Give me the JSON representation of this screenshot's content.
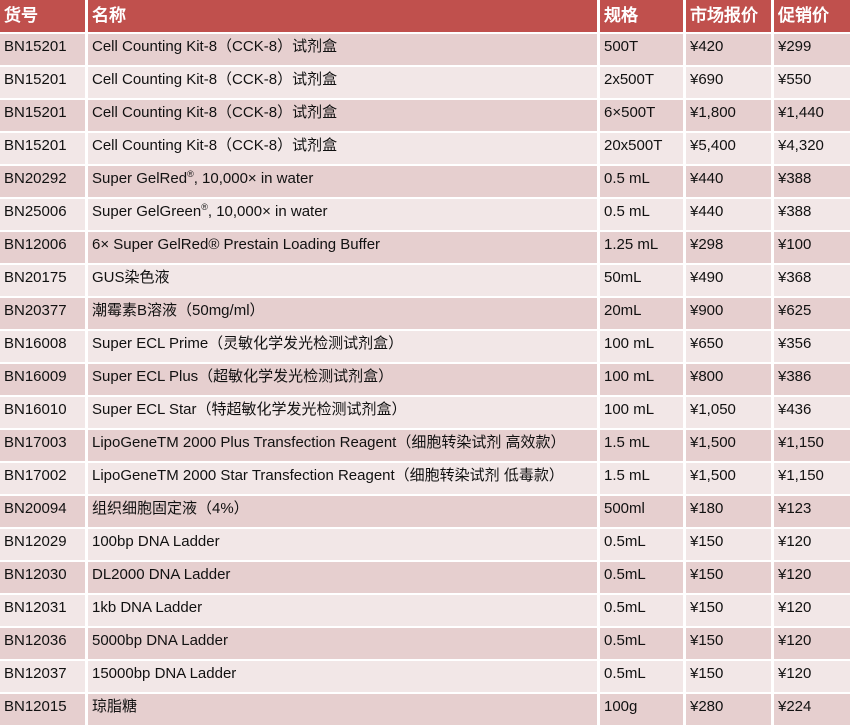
{
  "colors": {
    "header_bg": "#c0504d",
    "row_dark": "#e6cfcf",
    "row_light": "#f2e7e7"
  },
  "headers": [
    "货号",
    "名称",
    "规格",
    "市场报价",
    "促销价"
  ],
  "rows": [
    {
      "id": "BN15201",
      "name": "Cell Counting Kit-8（CCK-8）试剂盒",
      "spec": "500T",
      "market": "¥420",
      "promo": "¥299"
    },
    {
      "id": "BN15201",
      "name": "Cell Counting Kit-8（CCK-8）试剂盒",
      "spec": "2x500T",
      "market": "¥690",
      "promo": "¥550"
    },
    {
      "id": "BN15201",
      "name": "Cell Counting Kit-8（CCK-8）试剂盒",
      "spec": "6×500T",
      "market": "¥1,800",
      "promo": "¥1,440"
    },
    {
      "id": "BN15201",
      "name": "Cell Counting Kit-8（CCK-8）试剂盒",
      "spec": "20x500T",
      "market": "¥5,400",
      "promo": "¥4,320"
    },
    {
      "id": "BN20292",
      "name": "Super GelRed",
      "sup": "®",
      "name_rest": ", 10,000× in water",
      "spec": "0.5 mL",
      "market": "¥440",
      "promo": "¥388"
    },
    {
      "id": "BN25006",
      "name": "Super GelGreen",
      "sup": "®",
      "name_rest": ", 10,000× in water",
      "spec": "0.5 mL",
      "market": "¥440",
      "promo": "¥388"
    },
    {
      "id": "BN12006",
      "name": "6× Super GelRed® Prestain Loading Buffer",
      "spec": "1.25 mL",
      "market": "¥298",
      "promo": "¥100"
    },
    {
      "id": "BN20175",
      "name": "GUS染色液",
      "spec": "50mL",
      "market": "¥490",
      "promo": "¥368"
    },
    {
      "id": "BN20377",
      "name": "潮霉素B溶液（50mg/ml）",
      "spec": "20mL",
      "market": "¥900",
      "promo": "¥625"
    },
    {
      "id": "BN16008",
      "name": "Super ECL Prime（灵敏化学发光检测试剂盒）",
      "spec": "100 mL",
      "market": "¥650",
      "promo": "¥356"
    },
    {
      "id": "BN16009",
      "name": "Super ECL Plus（超敏化学发光检测试剂盒）",
      "spec": "100 mL",
      "market": "¥800",
      "promo": "¥386"
    },
    {
      "id": "BN16010",
      "name": "Super ECL Star（特超敏化学发光检测试剂盒）",
      "spec": "100 mL",
      "market": "¥1,050",
      "promo": "¥436"
    },
    {
      "id": "BN17003",
      "name": "LipoGeneTM 2000 Plus Transfection Reagent（细胞转染试剂 高效款）",
      "spec": "1.5 mL",
      "market": "¥1,500",
      "promo": "¥1,150"
    },
    {
      "id": "BN17002",
      "name": "LipoGeneTM 2000 Star Transfection Reagent（细胞转染试剂 低毒款）",
      "spec": "1.5 mL",
      "market": "¥1,500",
      "promo": "¥1,150"
    },
    {
      "id": "BN20094",
      "name": "组织细胞固定液（4%）",
      "spec": "500ml",
      "market": "¥180",
      "promo": "¥123"
    },
    {
      "id": "BN12029",
      "name": "100bp DNA Ladder",
      "spec": "0.5mL",
      "market": "¥150",
      "promo": "¥120"
    },
    {
      "id": "BN12030",
      "name": "DL2000 DNA Ladder",
      "spec": "0.5mL",
      "market": "¥150",
      "promo": "¥120"
    },
    {
      "id": "BN12031",
      "name": "1kb DNA Ladder",
      "spec": "0.5mL",
      "market": "¥150",
      "promo": "¥120"
    },
    {
      "id": "BN12036",
      "name": "5000bp DNA Ladder",
      "spec": "0.5mL",
      "market": "¥150",
      "promo": "¥120"
    },
    {
      "id": "BN12037",
      "name": "15000bp DNA Ladder",
      "spec": "0.5mL",
      "market": "¥150",
      "promo": "¥120"
    },
    {
      "id": "BN12015",
      "name": "琼脂糖",
      "spec": "100g",
      "market": "¥280",
      "promo": "¥224"
    }
  ]
}
